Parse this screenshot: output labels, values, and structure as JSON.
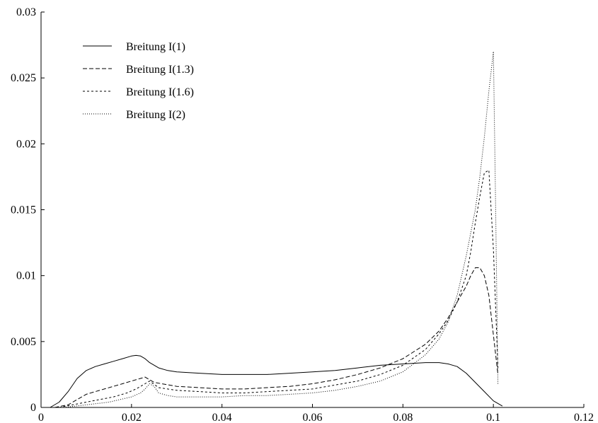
{
  "chart_data": {
    "type": "line",
    "title": "",
    "xlabel": "",
    "ylabel": "",
    "xlim": [
      0,
      0.12
    ],
    "ylim": [
      0,
      0.03
    ],
    "grid": false,
    "legend_position": "top-left",
    "x_ticks": [
      0,
      0.02,
      0.04,
      0.06,
      0.08,
      0.1,
      0.12
    ],
    "x_tick_labels": [
      "0",
      "0.02",
      "0.04",
      "0.06",
      "0.08",
      "0.1",
      "0.12"
    ],
    "y_ticks": [
      0,
      0.005,
      0.01,
      0.015,
      0.02,
      0.025,
      0.03
    ],
    "y_tick_labels": [
      "0",
      "0.005",
      "0.01",
      "0.015",
      "0.02",
      "0.025",
      "0.03"
    ],
    "series": [
      {
        "name": "Breitung I(1)",
        "line_style": "solid",
        "x": [
          0.002,
          0.004,
          0.006,
          0.008,
          0.01,
          0.012,
          0.014,
          0.016,
          0.018,
          0.02,
          0.021,
          0.022,
          0.023,
          0.024,
          0.026,
          0.028,
          0.03,
          0.035,
          0.04,
          0.045,
          0.05,
          0.055,
          0.06,
          0.065,
          0.07,
          0.075,
          0.08,
          0.085,
          0.088,
          0.09,
          0.092,
          0.094,
          0.096,
          0.098,
          0.1,
          0.102
        ],
        "y": [
          0.0,
          0.0004,
          0.0012,
          0.0022,
          0.0028,
          0.0031,
          0.0033,
          0.0035,
          0.0037,
          0.0039,
          0.00395,
          0.0039,
          0.0037,
          0.0034,
          0.003,
          0.0028,
          0.0027,
          0.0026,
          0.0025,
          0.0025,
          0.0025,
          0.0026,
          0.0027,
          0.0028,
          0.003,
          0.0032,
          0.0033,
          0.0034,
          0.0034,
          0.0033,
          0.0031,
          0.0026,
          0.0019,
          0.0012,
          0.0005,
          0.0001
        ]
      },
      {
        "name": "Breitung I(1.3)",
        "line_style": "dashed",
        "x": [
          0.003,
          0.006,
          0.008,
          0.01,
          0.012,
          0.014,
          0.016,
          0.018,
          0.02,
          0.022,
          0.023,
          0.025,
          0.03,
          0.035,
          0.04,
          0.045,
          0.05,
          0.055,
          0.06,
          0.065,
          0.07,
          0.075,
          0.08,
          0.085,
          0.088,
          0.09,
          0.092,
          0.094,
          0.095,
          0.096,
          0.097,
          0.098,
          0.099,
          0.1,
          0.101
        ],
        "y": [
          0.0,
          0.0002,
          0.0006,
          0.001,
          0.0012,
          0.0014,
          0.0016,
          0.0018,
          0.002,
          0.0022,
          0.0023,
          0.0019,
          0.0016,
          0.0015,
          0.0014,
          0.0014,
          0.0015,
          0.0016,
          0.0018,
          0.0021,
          0.0025,
          0.003,
          0.0037,
          0.0048,
          0.0058,
          0.0068,
          0.008,
          0.0092,
          0.01,
          0.0106,
          0.0106,
          0.01,
          0.0085,
          0.0055,
          0.0025
        ]
      },
      {
        "name": "Breitung I(1.6)",
        "line_style": "short-dashed",
        "x": [
          0.004,
          0.007,
          0.01,
          0.013,
          0.016,
          0.019,
          0.021,
          0.023,
          0.024,
          0.026,
          0.03,
          0.035,
          0.04,
          0.045,
          0.05,
          0.055,
          0.06,
          0.065,
          0.07,
          0.075,
          0.08,
          0.085,
          0.088,
          0.09,
          0.092,
          0.094,
          0.095,
          0.096,
          0.097,
          0.098,
          0.099,
          0.1,
          0.101
        ],
        "y": [
          0.0,
          0.0002,
          0.0004,
          0.0006,
          0.0008,
          0.0011,
          0.0014,
          0.0018,
          0.002,
          0.0015,
          0.0013,
          0.0012,
          0.0011,
          0.0011,
          0.0012,
          0.0013,
          0.0014,
          0.0017,
          0.002,
          0.0025,
          0.0032,
          0.0044,
          0.0056,
          0.0066,
          0.008,
          0.01,
          0.0118,
          0.014,
          0.016,
          0.0178,
          0.018,
          0.012,
          0.003
        ]
      },
      {
        "name": "Breitung I(2)",
        "line_style": "dotted",
        "x": [
          0.005,
          0.01,
          0.015,
          0.02,
          0.022,
          0.023,
          0.024,
          0.025,
          0.026,
          0.028,
          0.03,
          0.035,
          0.04,
          0.045,
          0.05,
          0.055,
          0.06,
          0.065,
          0.07,
          0.075,
          0.08,
          0.085,
          0.088,
          0.09,
          0.092,
          0.094,
          0.096,
          0.097,
          0.098,
          0.099,
          0.0995,
          0.1,
          0.1005,
          0.101
        ],
        "y": [
          0.0,
          0.0002,
          0.0004,
          0.0008,
          0.0011,
          0.0014,
          0.0018,
          0.0016,
          0.0011,
          0.0009,
          0.0008,
          0.0008,
          0.0008,
          0.0009,
          0.0009,
          0.001,
          0.0011,
          0.0013,
          0.0016,
          0.002,
          0.0027,
          0.004,
          0.0052,
          0.0065,
          0.0085,
          0.0115,
          0.015,
          0.0175,
          0.0205,
          0.024,
          0.0255,
          0.027,
          0.015,
          0.0018
        ]
      }
    ]
  }
}
